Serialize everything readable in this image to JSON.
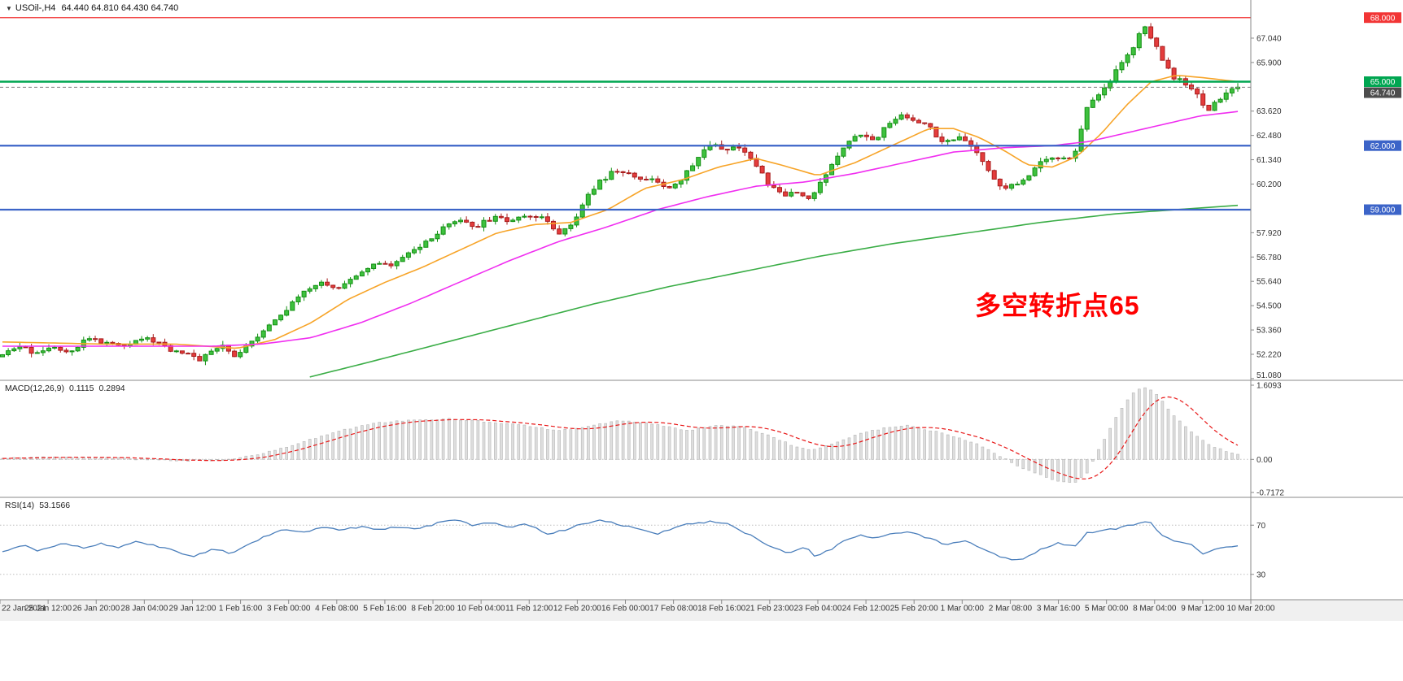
{
  "header": {
    "menu_icon": "▼",
    "symbol_period": "USOil-,H4",
    "ohlc": "64.440 64.810 64.430 64.740"
  },
  "annotation": {
    "text": "多空转折点65",
    "color": "#ff0000"
  },
  "indicators": {
    "macd": {
      "label": "MACD(12,26,9)",
      "value_main": "0.1115",
      "value_signal": "0.2894"
    },
    "rsi": {
      "label": "RSI(14)",
      "value": "53.1566"
    }
  },
  "time_axis": {
    "labels": [
      "22 Jan 2021",
      "25 Jan 12:00",
      "26 Jan 20:00",
      "28 Jan 04:00",
      "29 Jan 12:00",
      "1 Feb 16:00",
      "3 Feb 00:00",
      "4 Feb 08:00",
      "5 Feb 16:00",
      "8 Feb 20:00",
      "10 Feb 04:00",
      "11 Feb 12:00",
      "12 Feb 20:00",
      "16 Feb 00:00",
      "17 Feb 08:00",
      "18 Feb 16:00",
      "21 Feb 23:00",
      "23 Feb 04:00",
      "24 Feb 12:00",
      "25 Feb 20:00",
      "1 Mar 00:00",
      "2 Mar 08:00",
      "3 Mar 16:00",
      "5 Mar 00:00",
      "8 Mar 04:00",
      "9 Mar 12:00",
      "10 Mar 20:00"
    ]
  },
  "chart_data": {
    "type": "candlestick",
    "symbol": "USOil-",
    "timeframe": "H4",
    "current": {
      "open": 64.44,
      "high": 64.81,
      "low": 64.43,
      "close": 64.74,
      "label": "64.740"
    },
    "y_range": {
      "max": 68.6,
      "min": 51.0
    },
    "price_axis_ticks": [
      [
        67.04,
        "67.040"
      ],
      [
        65.9,
        "65.900"
      ],
      [
        63.62,
        "63.620"
      ],
      [
        62.48,
        "62.480"
      ],
      [
        61.34,
        "61.340"
      ],
      [
        60.2,
        "60.200"
      ],
      [
        57.92,
        "57.920"
      ],
      [
        56.78,
        "56.780"
      ],
      [
        55.64,
        "55.640"
      ],
      [
        54.5,
        "54.500"
      ],
      [
        53.36,
        "53.360"
      ],
      [
        52.22,
        "52.220"
      ],
      [
        51.08,
        "51.080"
      ]
    ],
    "horizontal_levels": [
      {
        "value": 68.0,
        "label": "68.000",
        "color": "#f23535",
        "width": 1.2
      },
      {
        "value": 65.0,
        "label": "65.000",
        "color": "#00a651",
        "width": 2.4
      },
      {
        "value": 62.0,
        "label": "62.000",
        "color": "#3c64c8",
        "width": 2.2
      },
      {
        "value": 59.0,
        "label": "59.000",
        "color": "#3c64c8",
        "width": 2.2
      }
    ],
    "price_path": [
      [
        0,
        52.1
      ],
      [
        0.012,
        52.6
      ],
      [
        0.025,
        52.3
      ],
      [
        0.04,
        52.6
      ],
      [
        0.055,
        52.4
      ],
      [
        0.07,
        53.0
      ],
      [
        0.085,
        52.7
      ],
      [
        0.1,
        52.7
      ],
      [
        0.112,
        53.0
      ],
      [
        0.125,
        52.8
      ],
      [
        0.138,
        52.4
      ],
      [
        0.15,
        52.3
      ],
      [
        0.158,
        51.9
      ],
      [
        0.168,
        52.4
      ],
      [
        0.178,
        52.6
      ],
      [
        0.188,
        52.1
      ],
      [
        0.198,
        52.7
      ],
      [
        0.21,
        53.3
      ],
      [
        0.222,
        53.9
      ],
      [
        0.235,
        54.6
      ],
      [
        0.248,
        55.3
      ],
      [
        0.26,
        55.6
      ],
      [
        0.27,
        55.2
      ],
      [
        0.285,
        55.9
      ],
      [
        0.3,
        56.5
      ],
      [
        0.315,
        56.3
      ],
      [
        0.33,
        57.0
      ],
      [
        0.345,
        57.5
      ],
      [
        0.357,
        58.1
      ],
      [
        0.37,
        58.5
      ],
      [
        0.383,
        58.2
      ],
      [
        0.397,
        58.6
      ],
      [
        0.41,
        58.5
      ],
      [
        0.425,
        58.8
      ],
      [
        0.44,
        58.5
      ],
      [
        0.452,
        57.9
      ],
      [
        0.463,
        58.4
      ],
      [
        0.472,
        59.6
      ],
      [
        0.483,
        60.3
      ],
      [
        0.495,
        60.8
      ],
      [
        0.508,
        60.6
      ],
      [
        0.52,
        60.5
      ],
      [
        0.532,
        60.2
      ],
      [
        0.543,
        60.0
      ],
      [
        0.553,
        60.7
      ],
      [
        0.565,
        61.6
      ],
      [
        0.575,
        62.2
      ],
      [
        0.585,
        61.8
      ],
      [
        0.597,
        62.0
      ],
      [
        0.608,
        61.2
      ],
      [
        0.62,
        60.2
      ],
      [
        0.632,
        59.6
      ],
      [
        0.642,
        59.9
      ],
      [
        0.652,
        59.5
      ],
      [
        0.662,
        60.2
      ],
      [
        0.673,
        61.2
      ],
      [
        0.685,
        62.3
      ],
      [
        0.695,
        62.6
      ],
      [
        0.703,
        62.1
      ],
      [
        0.715,
        62.9
      ],
      [
        0.727,
        63.5
      ],
      [
        0.738,
        63.2
      ],
      [
        0.75,
        62.9
      ],
      [
        0.762,
        62.1
      ],
      [
        0.773,
        62.4
      ],
      [
        0.785,
        61.9
      ],
      [
        0.797,
        60.9
      ],
      [
        0.81,
        60.0
      ],
      [
        0.822,
        60.2
      ],
      [
        0.835,
        60.9
      ],
      [
        0.848,
        61.5
      ],
      [
        0.858,
        61.3
      ],
      [
        0.868,
        61.6
      ],
      [
        0.878,
        63.9
      ],
      [
        0.888,
        64.3
      ],
      [
        0.897,
        65.1
      ],
      [
        0.906,
        65.9
      ],
      [
        0.915,
        66.6
      ],
      [
        0.923,
        67.7
      ],
      [
        0.93,
        67.1
      ],
      [
        0.938,
        66.2
      ],
      [
        0.947,
        65.2
      ],
      [
        0.955,
        65.0
      ],
      [
        0.962,
        64.8
      ],
      [
        0.97,
        64.1
      ],
      [
        0.977,
        63.7
      ],
      [
        0.985,
        64.2
      ],
      [
        1,
        64.74
      ]
    ],
    "moving_averages": [
      {
        "name": "ma-fast-line",
        "color": "#f7a428",
        "points": [
          [
            0,
            52.8
          ],
          [
            0.08,
            52.7
          ],
          [
            0.14,
            52.7
          ],
          [
            0.19,
            52.5
          ],
          [
            0.22,
            52.9
          ],
          [
            0.25,
            53.7
          ],
          [
            0.28,
            54.8
          ],
          [
            0.31,
            55.6
          ],
          [
            0.34,
            56.3
          ],
          [
            0.37,
            57.1
          ],
          [
            0.4,
            57.9
          ],
          [
            0.43,
            58.3
          ],
          [
            0.46,
            58.4
          ],
          [
            0.49,
            59.0
          ],
          [
            0.52,
            60.0
          ],
          [
            0.55,
            60.4
          ],
          [
            0.58,
            61.0
          ],
          [
            0.61,
            61.4
          ],
          [
            0.63,
            61.1
          ],
          [
            0.66,
            60.6
          ],
          [
            0.69,
            61.2
          ],
          [
            0.72,
            62.0
          ],
          [
            0.75,
            62.8
          ],
          [
            0.77,
            62.8
          ],
          [
            0.79,
            62.4
          ],
          [
            0.81,
            61.8
          ],
          [
            0.83,
            61.1
          ],
          [
            0.85,
            61.0
          ],
          [
            0.87,
            61.5
          ],
          [
            0.89,
            62.6
          ],
          [
            0.91,
            63.9
          ],
          [
            0.93,
            65.0
          ],
          [
            0.95,
            65.3
          ],
          [
            0.97,
            65.2
          ],
          [
            1,
            65.0
          ]
        ]
      },
      {
        "name": "ma-mid-line",
        "color": "#f02ef0",
        "points": [
          [
            0,
            52.6
          ],
          [
            0.1,
            52.6
          ],
          [
            0.17,
            52.6
          ],
          [
            0.21,
            52.7
          ],
          [
            0.25,
            53.0
          ],
          [
            0.29,
            53.7
          ],
          [
            0.33,
            54.6
          ],
          [
            0.37,
            55.6
          ],
          [
            0.41,
            56.6
          ],
          [
            0.45,
            57.5
          ],
          [
            0.49,
            58.2
          ],
          [
            0.53,
            59.0
          ],
          [
            0.57,
            59.6
          ],
          [
            0.61,
            60.1
          ],
          [
            0.65,
            60.3
          ],
          [
            0.69,
            60.7
          ],
          [
            0.73,
            61.2
          ],
          [
            0.77,
            61.7
          ],
          [
            0.81,
            61.9
          ],
          [
            0.85,
            62.0
          ],
          [
            0.88,
            62.2
          ],
          [
            0.91,
            62.6
          ],
          [
            0.94,
            63.0
          ],
          [
            0.97,
            63.4
          ],
          [
            1,
            63.6
          ]
        ]
      },
      {
        "name": "ma-slow-line",
        "color": "#3aad46",
        "points": [
          [
            0.245,
            51.1
          ],
          [
            0.3,
            51.9
          ],
          [
            0.36,
            52.8
          ],
          [
            0.42,
            53.7
          ],
          [
            0.48,
            54.6
          ],
          [
            0.54,
            55.4
          ],
          [
            0.6,
            56.1
          ],
          [
            0.66,
            56.8
          ],
          [
            0.72,
            57.4
          ],
          [
            0.78,
            57.9
          ],
          [
            0.84,
            58.4
          ],
          [
            0.9,
            58.8
          ],
          [
            0.95,
            59.0
          ],
          [
            1,
            59.2
          ]
        ]
      }
    ],
    "macd": {
      "main": 0.1115,
      "signal": 0.2894,
      "axis_max": 1.6093,
      "axis_min": -0.7172,
      "axis_ticks": [
        [
          1.6093,
          "1.6093"
        ],
        [
          0,
          "0.00"
        ],
        [
          -0.7172,
          "-0.7172"
        ]
      ],
      "path": [
        [
          0,
          0.02
        ],
        [
          0.04,
          0.05
        ],
        [
          0.08,
          0.04
        ],
        [
          0.12,
          0.0
        ],
        [
          0.15,
          -0.03
        ],
        [
          0.18,
          -0.01
        ],
        [
          0.21,
          0.12
        ],
        [
          0.24,
          0.35
        ],
        [
          0.27,
          0.6
        ],
        [
          0.3,
          0.78
        ],
        [
          0.33,
          0.85
        ],
        [
          0.36,
          0.88
        ],
        [
          0.39,
          0.82
        ],
        [
          0.42,
          0.76
        ],
        [
          0.45,
          0.62
        ],
        [
          0.475,
          0.72
        ],
        [
          0.5,
          0.84
        ],
        [
          0.53,
          0.76
        ],
        [
          0.555,
          0.62
        ],
        [
          0.575,
          0.74
        ],
        [
          0.6,
          0.7
        ],
        [
          0.62,
          0.52
        ],
        [
          0.64,
          0.3
        ],
        [
          0.655,
          0.2
        ],
        [
          0.67,
          0.32
        ],
        [
          0.69,
          0.52
        ],
        [
          0.71,
          0.66
        ],
        [
          0.73,
          0.74
        ],
        [
          0.75,
          0.64
        ],
        [
          0.77,
          0.5
        ],
        [
          0.79,
          0.32
        ],
        [
          0.81,
          0.04
        ],
        [
          0.825,
          -0.18
        ],
        [
          0.84,
          -0.34
        ],
        [
          0.855,
          -0.48
        ],
        [
          0.868,
          -0.52
        ],
        [
          0.878,
          -0.28
        ],
        [
          0.888,
          0.25
        ],
        [
          0.9,
          0.85
        ],
        [
          0.912,
          1.35
        ],
        [
          0.922,
          1.58
        ],
        [
          0.932,
          1.5
        ],
        [
          0.942,
          1.15
        ],
        [
          0.952,
          0.85
        ],
        [
          0.962,
          0.6
        ],
        [
          0.972,
          0.4
        ],
        [
          0.982,
          0.25
        ],
        [
          1,
          0.11
        ]
      ]
    },
    "rsi": {
      "current": 53.1566,
      "levels": [
        70,
        30
      ],
      "level_labels": [
        "70",
        "30"
      ],
      "path": [
        [
          0,
          48
        ],
        [
          0.015,
          54
        ],
        [
          0.03,
          49
        ],
        [
          0.05,
          56
        ],
        [
          0.065,
          51
        ],
        [
          0.08,
          55
        ],
        [
          0.095,
          52
        ],
        [
          0.11,
          57
        ],
        [
          0.125,
          53
        ],
        [
          0.14,
          49
        ],
        [
          0.155,
          44
        ],
        [
          0.17,
          51
        ],
        [
          0.185,
          47
        ],
        [
          0.2,
          55
        ],
        [
          0.215,
          62
        ],
        [
          0.23,
          67
        ],
        [
          0.245,
          64
        ],
        [
          0.26,
          69
        ],
        [
          0.275,
          66
        ],
        [
          0.29,
          69
        ],
        [
          0.305,
          66
        ],
        [
          0.32,
          69
        ],
        [
          0.335,
          67
        ],
        [
          0.35,
          71
        ],
        [
          0.365,
          75
        ],
        [
          0.38,
          70
        ],
        [
          0.395,
          72
        ],
        [
          0.41,
          68
        ],
        [
          0.425,
          71
        ],
        [
          0.44,
          63
        ],
        [
          0.455,
          66
        ],
        [
          0.47,
          71
        ],
        [
          0.485,
          74
        ],
        [
          0.5,
          70
        ],
        [
          0.515,
          67
        ],
        [
          0.53,
          63
        ],
        [
          0.545,
          68
        ],
        [
          0.56,
          72
        ],
        [
          0.575,
          73
        ],
        [
          0.59,
          70
        ],
        [
          0.605,
          62
        ],
        [
          0.62,
          54
        ],
        [
          0.635,
          47
        ],
        [
          0.65,
          52
        ],
        [
          0.658,
          45
        ],
        [
          0.668,
          49
        ],
        [
          0.68,
          56
        ],
        [
          0.692,
          62
        ],
        [
          0.705,
          59
        ],
        [
          0.72,
          63
        ],
        [
          0.735,
          65
        ],
        [
          0.75,
          59
        ],
        [
          0.765,
          54
        ],
        [
          0.78,
          57
        ],
        [
          0.795,
          50
        ],
        [
          0.81,
          43
        ],
        [
          0.825,
          41
        ],
        [
          0.84,
          50
        ],
        [
          0.855,
          56
        ],
        [
          0.868,
          52
        ],
        [
          0.878,
          64
        ],
        [
          0.89,
          65
        ],
        [
          0.905,
          68
        ],
        [
          0.918,
          71
        ],
        [
          0.928,
          73
        ],
        [
          0.94,
          61
        ],
        [
          0.952,
          56
        ],
        [
          0.962,
          54
        ],
        [
          0.972,
          47
        ],
        [
          0.982,
          51
        ],
        [
          1,
          53.16
        ]
      ]
    },
    "palette": {
      "candle_up": "#3ec13e",
      "candle_up_stroke": "#149014",
      "candle_down": "#e43c3c",
      "candle_down_stroke": "#a81d1d",
      "macd_hist_fill": "#dedede",
      "macd_hist_stroke": "#b6b6b6",
      "macd_signal": "#e81717",
      "rsi_line": "#4a7ebb",
      "level_dotted": "#bdbdbd",
      "time_strip": "#f0f0f0",
      "panel_border": "#8a8a8a",
      "tick": "#8a8a8a",
      "current_badge": "#4d4d4d"
    }
  }
}
